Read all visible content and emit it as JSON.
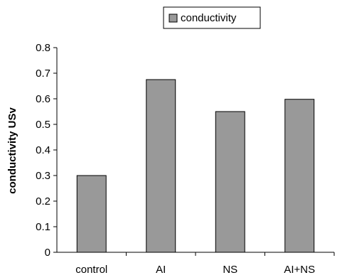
{
  "chart_data": {
    "type": "bar",
    "categories": [
      "control",
      "AI",
      "NS",
      "AI+NS"
    ],
    "series": [
      {
        "name": "conductivity",
        "values": [
          0.3,
          0.675,
          0.55,
          0.598
        ]
      }
    ],
    "ylabel": "conductivity USv",
    "ylim": [
      0,
      0.8
    ],
    "yticks": [
      "0",
      "0.1",
      "0.2",
      "0.3",
      "0.4",
      "0.5",
      "0.6",
      "0.7",
      "0.8"
    ],
    "legend_position": "top-center",
    "grid": false,
    "colors": {
      "bar_fill": "#999999",
      "bar_stroke": "#000000",
      "axis": "#000000"
    }
  }
}
